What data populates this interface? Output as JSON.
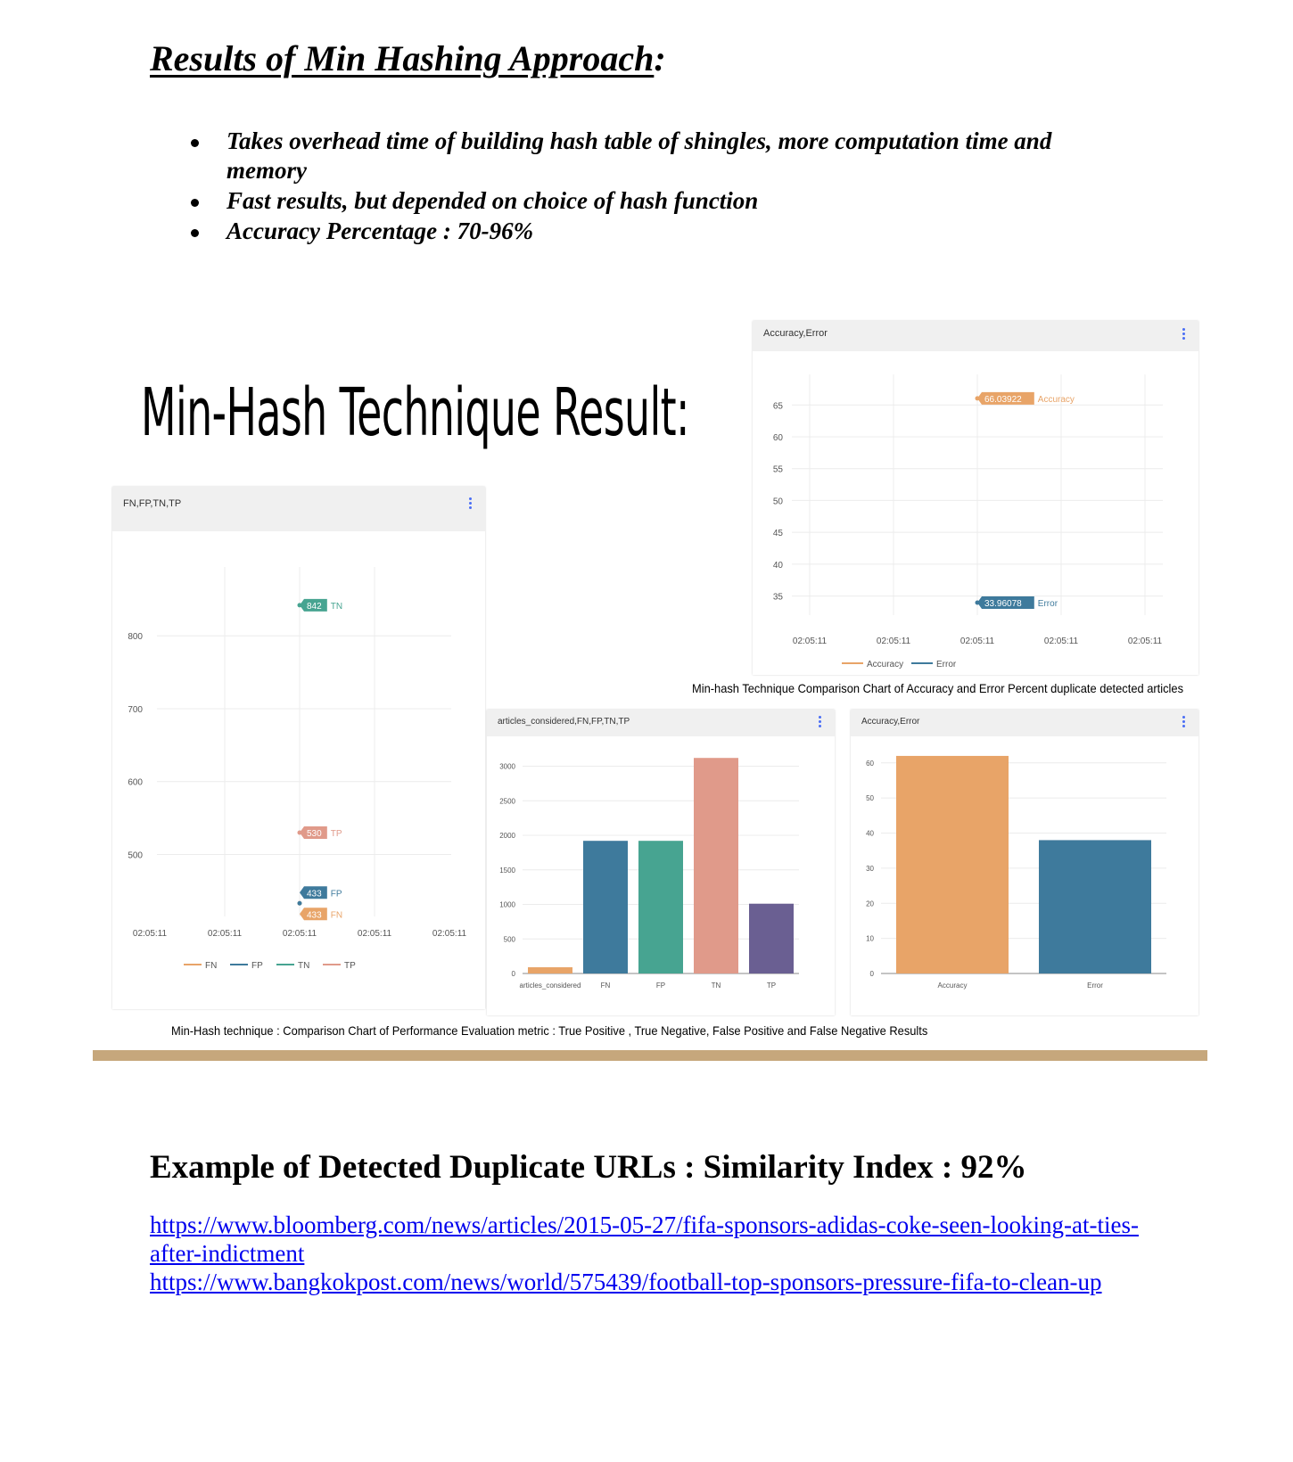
{
  "heading": {
    "main": "Results of Min Hashing Approach",
    "suffix": ":"
  },
  "bullets": [
    "Takes overhead time of building hash table of shingles, more  computation time and memory",
    "Fast results, but depended on choice of hash function",
    "Accuracy Percentage : 70-96%"
  ],
  "big_title": "Min-Hash Technique Result:",
  "panels": {
    "line1": {
      "title": "Accuracy,Error"
    },
    "line2": {
      "title": "FN,FP,TN,TP"
    },
    "bar1": {
      "title": "articles_considered,FN,FP,TN,TP"
    },
    "bar2": {
      "title": "Accuracy,Error"
    }
  },
  "captions": {
    "accuracy_error": "Min-hash Technique Comparison Chart of Accuracy and Error Percent duplicate detected articles",
    "performance": "Min-Hash technique : Comparison Chart of Performance Evaluation metric : True Positive , True Negative, False Positive and False Negative Results"
  },
  "example_heading": "Example of Detected Duplicate URLs : Similarity Index : 92%",
  "links": [
    "https://www.bloomberg.com/news/articles/2015-05-27/fifa-sponsors-adidas-coke-seen-looking-at-ties-after-indictment",
    "https://www.bangkokpost.com/news/world/575439/football-top-sponsors-pressure-fifa-to-clean-up"
  ],
  "colors": {
    "orange": "#e8a468",
    "blue": "#3e7a9c",
    "teal": "#47a491",
    "salmon": "#e09a8a",
    "purple": "#6a5f92",
    "rule": "#c6a77c",
    "link": "#0000ee"
  },
  "chart_data": [
    {
      "type": "line",
      "title": "Accuracy,Error",
      "x": [
        "02:05:11",
        "02:05:11",
        "02:05:11",
        "02:05:11",
        "02:05:11"
      ],
      "ylim": [
        32,
        67
      ],
      "yticks": [
        35,
        40,
        45,
        50,
        55,
        60,
        65
      ],
      "series": [
        {
          "name": "Accuracy",
          "color": "#e8a468",
          "x": "02:05:11",
          "value": 66.03922,
          "label": "66.03922"
        },
        {
          "name": "Error",
          "color": "#3e7a9c",
          "x": "02:05:11",
          "value": 33.96078,
          "label": "33.96078"
        }
      ],
      "legend": "bottom"
    },
    {
      "type": "line",
      "title": "FN,FP,TN,TP",
      "x": [
        "02:05:11",
        "02:05:11",
        "02:05:11",
        "02:05:11",
        "02:05:11"
      ],
      "ylim": [
        415,
        870
      ],
      "yticks": [
        500,
        600,
        700,
        800
      ],
      "series": [
        {
          "name": "FN",
          "color": "#e8a468",
          "value": 433,
          "label": "433"
        },
        {
          "name": "FP",
          "color": "#3e7a9c",
          "value": 433,
          "label": "433"
        },
        {
          "name": "TN",
          "color": "#47a491",
          "value": 842,
          "label": "842"
        },
        {
          "name": "TP",
          "color": "#e09a8a",
          "value": 530,
          "label": "530"
        }
      ],
      "legend": "bottom"
    },
    {
      "type": "bar",
      "title": "articles_considered,FN,FP,TN,TP",
      "categories": [
        "articles_considered",
        "FN",
        "FP",
        "TN",
        "TP"
      ],
      "values": [
        90,
        1920,
        1920,
        3120,
        1010
      ],
      "colors": [
        "#e8a468",
        "#3e7a9c",
        "#47a491",
        "#e09a8a",
        "#6a5f92"
      ],
      "ylim": [
        0,
        3200
      ],
      "yticks": [
        0,
        500,
        1000,
        1500,
        2000,
        2500,
        3000
      ]
    },
    {
      "type": "bar",
      "title": "Accuracy,Error",
      "categories": [
        "Accuracy",
        "Error"
      ],
      "values": [
        62,
        38
      ],
      "colors": [
        "#e8a468",
        "#3e7a9c"
      ],
      "ylim": [
        0,
        63
      ],
      "yticks": [
        0,
        10,
        20,
        30,
        40,
        50,
        60
      ]
    }
  ]
}
